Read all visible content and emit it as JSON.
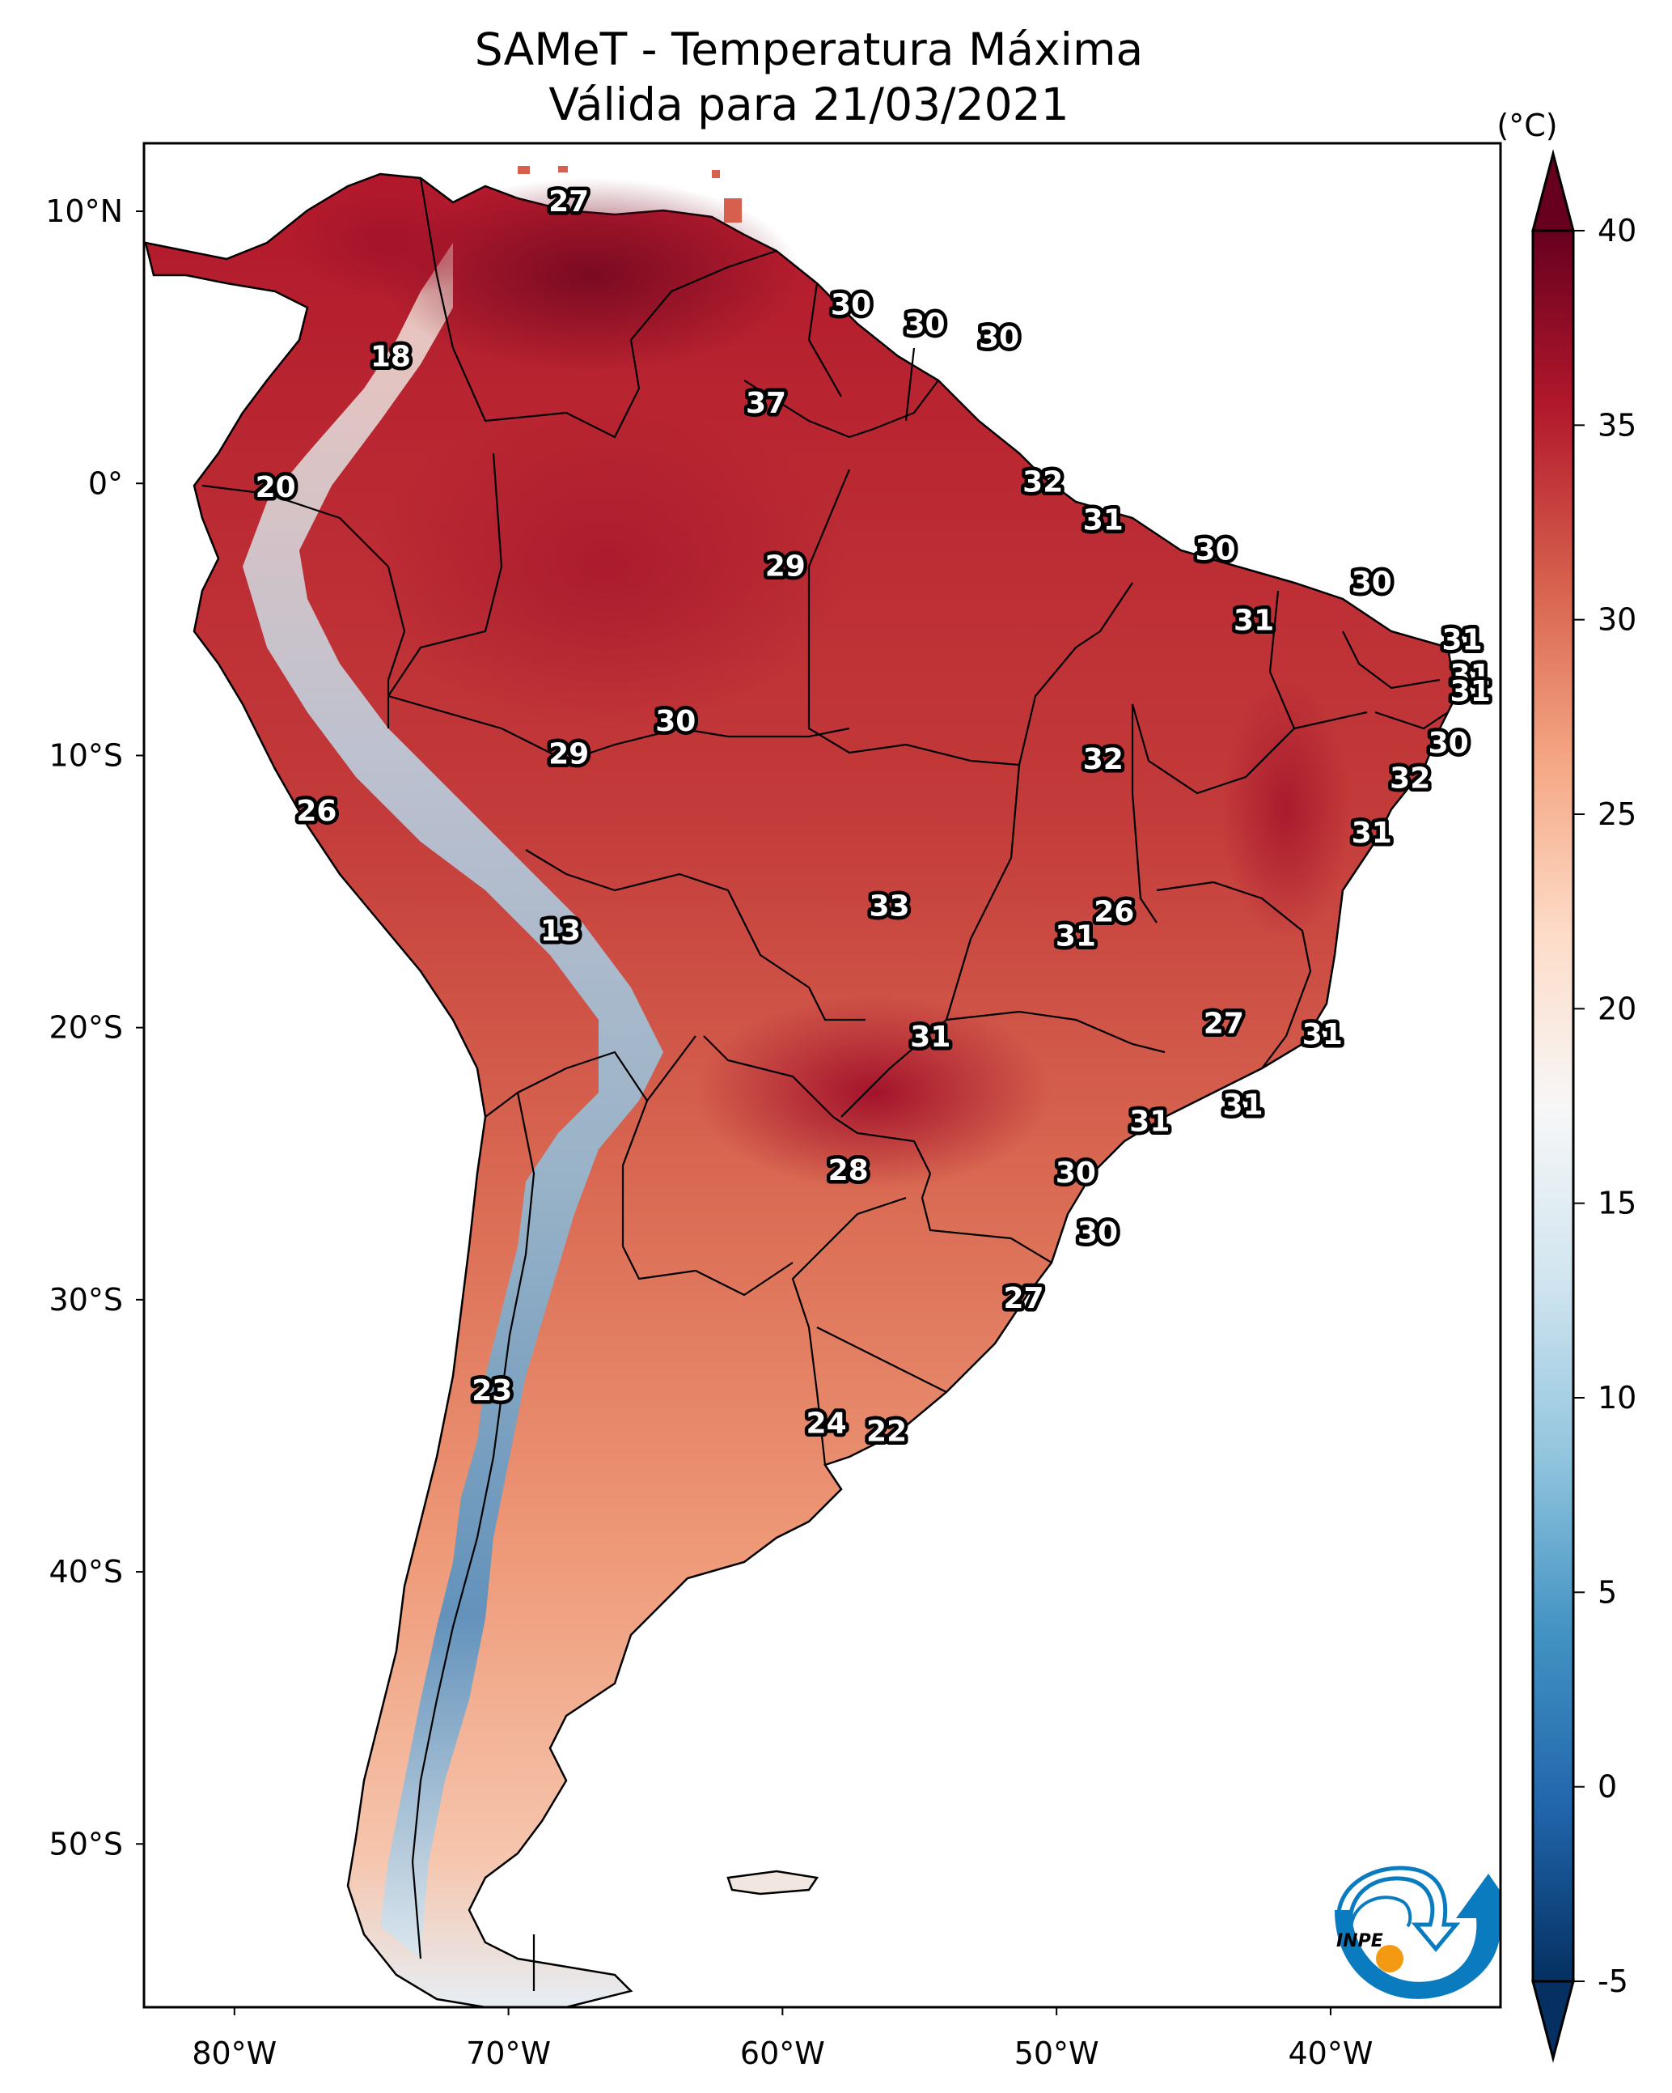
{
  "chart_data": {
    "type": "heatmap",
    "title": "SAMeT - Temperatura Máxima",
    "subtitle": "Válida para 21/03/2021",
    "variable": "Temperatura Máxima",
    "valid_date": "21/03/2021",
    "xlabel": "",
    "ylabel": "",
    "x_ticks": [
      {
        "value": -80,
        "label": "80°W"
      },
      {
        "value": -70,
        "label": "70°W"
      },
      {
        "value": -60,
        "label": "60°W"
      },
      {
        "value": -50,
        "label": "50°W"
      },
      {
        "value": -40,
        "label": "40°W"
      }
    ],
    "y_ticks": [
      {
        "value": 10,
        "label": "10°N"
      },
      {
        "value": 0,
        "label": "0°"
      },
      {
        "value": -10,
        "label": "10°S"
      },
      {
        "value": -20,
        "label": "20°S"
      },
      {
        "value": -30,
        "label": "30°S"
      },
      {
        "value": -40,
        "label": "40°S"
      },
      {
        "value": -50,
        "label": "50°S"
      }
    ],
    "xlim": [
      -83.3,
      -33.8
    ],
    "ylim": [
      -56,
      12.5
    ],
    "grid": false,
    "colorbar": {
      "label": "(°C)",
      "range": [
        -5,
        40
      ],
      "extend": "both",
      "ticks": [
        {
          "value": 40,
          "label": "40"
        },
        {
          "value": 35,
          "label": "35"
        },
        {
          "value": 30,
          "label": "30"
        },
        {
          "value": 25,
          "label": "25"
        },
        {
          "value": 20,
          "label": "20"
        },
        {
          "value": 15,
          "label": "15"
        },
        {
          "value": 10,
          "label": "10"
        },
        {
          "value": 5,
          "label": "5"
        },
        {
          "value": 0,
          "label": "0"
        },
        {
          "value": -5,
          "label": "-5"
        }
      ],
      "colormap": "RdBu_r",
      "colors": [
        "#053061",
        "#2166ac",
        "#4393c3",
        "#92c5de",
        "#d1e5f0",
        "#f7f7f7",
        "#fddbc7",
        "#f4a582",
        "#d6604d",
        "#b2182b",
        "#67001f"
      ],
      "placement": "right"
    },
    "station_labels": [
      {
        "lon": -67.8,
        "lat": 10.3,
        "value": "27"
      },
      {
        "lon": -57.5,
        "lat": 6.5,
        "value": "30"
      },
      {
        "lon": -54.8,
        "lat": 5.8,
        "value": "30"
      },
      {
        "lon": -52.1,
        "lat": 5.3,
        "value": "30"
      },
      {
        "lon": -74.3,
        "lat": 4.6,
        "value": "18"
      },
      {
        "lon": -60.6,
        "lat": 2.9,
        "value": "37"
      },
      {
        "lon": -78.5,
        "lat": -0.2,
        "value": "20"
      },
      {
        "lon": -50.5,
        "lat": 0.0,
        "value": "32"
      },
      {
        "lon": -48.3,
        "lat": -1.4,
        "value": "31"
      },
      {
        "lon": -44.2,
        "lat": -2.5,
        "value": "30"
      },
      {
        "lon": -59.9,
        "lat": -3.1,
        "value": "29"
      },
      {
        "lon": -38.5,
        "lat": -3.7,
        "value": "30"
      },
      {
        "lon": -42.8,
        "lat": -5.1,
        "value": "31"
      },
      {
        "lon": -35.2,
        "lat": -5.8,
        "value": "31"
      },
      {
        "lon": -34.9,
        "lat": -7.1,
        "value": "31"
      },
      {
        "lon": -34.9,
        "lat": -7.7,
        "value": "31"
      },
      {
        "lon": -63.9,
        "lat": -8.8,
        "value": "30"
      },
      {
        "lon": -67.8,
        "lat": -10.0,
        "value": "29"
      },
      {
        "lon": -35.7,
        "lat": -9.6,
        "value": "30"
      },
      {
        "lon": -48.3,
        "lat": -10.2,
        "value": "32"
      },
      {
        "lon": -37.1,
        "lat": -10.9,
        "value": "32"
      },
      {
        "lon": -77.0,
        "lat": -12.1,
        "value": "26"
      },
      {
        "lon": -38.5,
        "lat": -12.9,
        "value": "31"
      },
      {
        "lon": -56.1,
        "lat": -15.6,
        "value": "33"
      },
      {
        "lon": -47.9,
        "lat": -15.8,
        "value": "26"
      },
      {
        "lon": -68.1,
        "lat": -16.5,
        "value": "13"
      },
      {
        "lon": -49.3,
        "lat": -16.7,
        "value": "31"
      },
      {
        "lon": -43.9,
        "lat": -19.9,
        "value": "27"
      },
      {
        "lon": -40.3,
        "lat": -20.3,
        "value": "31"
      },
      {
        "lon": -54.6,
        "lat": -20.4,
        "value": "31"
      },
      {
        "lon": -43.2,
        "lat": -22.9,
        "value": "31"
      },
      {
        "lon": -46.6,
        "lat": -23.5,
        "value": "31"
      },
      {
        "lon": -57.6,
        "lat": -25.3,
        "value": "28"
      },
      {
        "lon": -49.3,
        "lat": -25.4,
        "value": "30"
      },
      {
        "lon": -48.5,
        "lat": -27.6,
        "value": "30"
      },
      {
        "lon": -51.2,
        "lat": -30.0,
        "value": "27"
      },
      {
        "lon": -70.6,
        "lat": -33.4,
        "value": "23"
      },
      {
        "lon": -58.4,
        "lat": -34.6,
        "value": "24"
      },
      {
        "lon": -56.2,
        "lat": -34.9,
        "value": "22"
      }
    ]
  },
  "logo": {
    "text": "INPE",
    "primary_color": "#0a7bbf",
    "accent_color": "#f39a12"
  }
}
